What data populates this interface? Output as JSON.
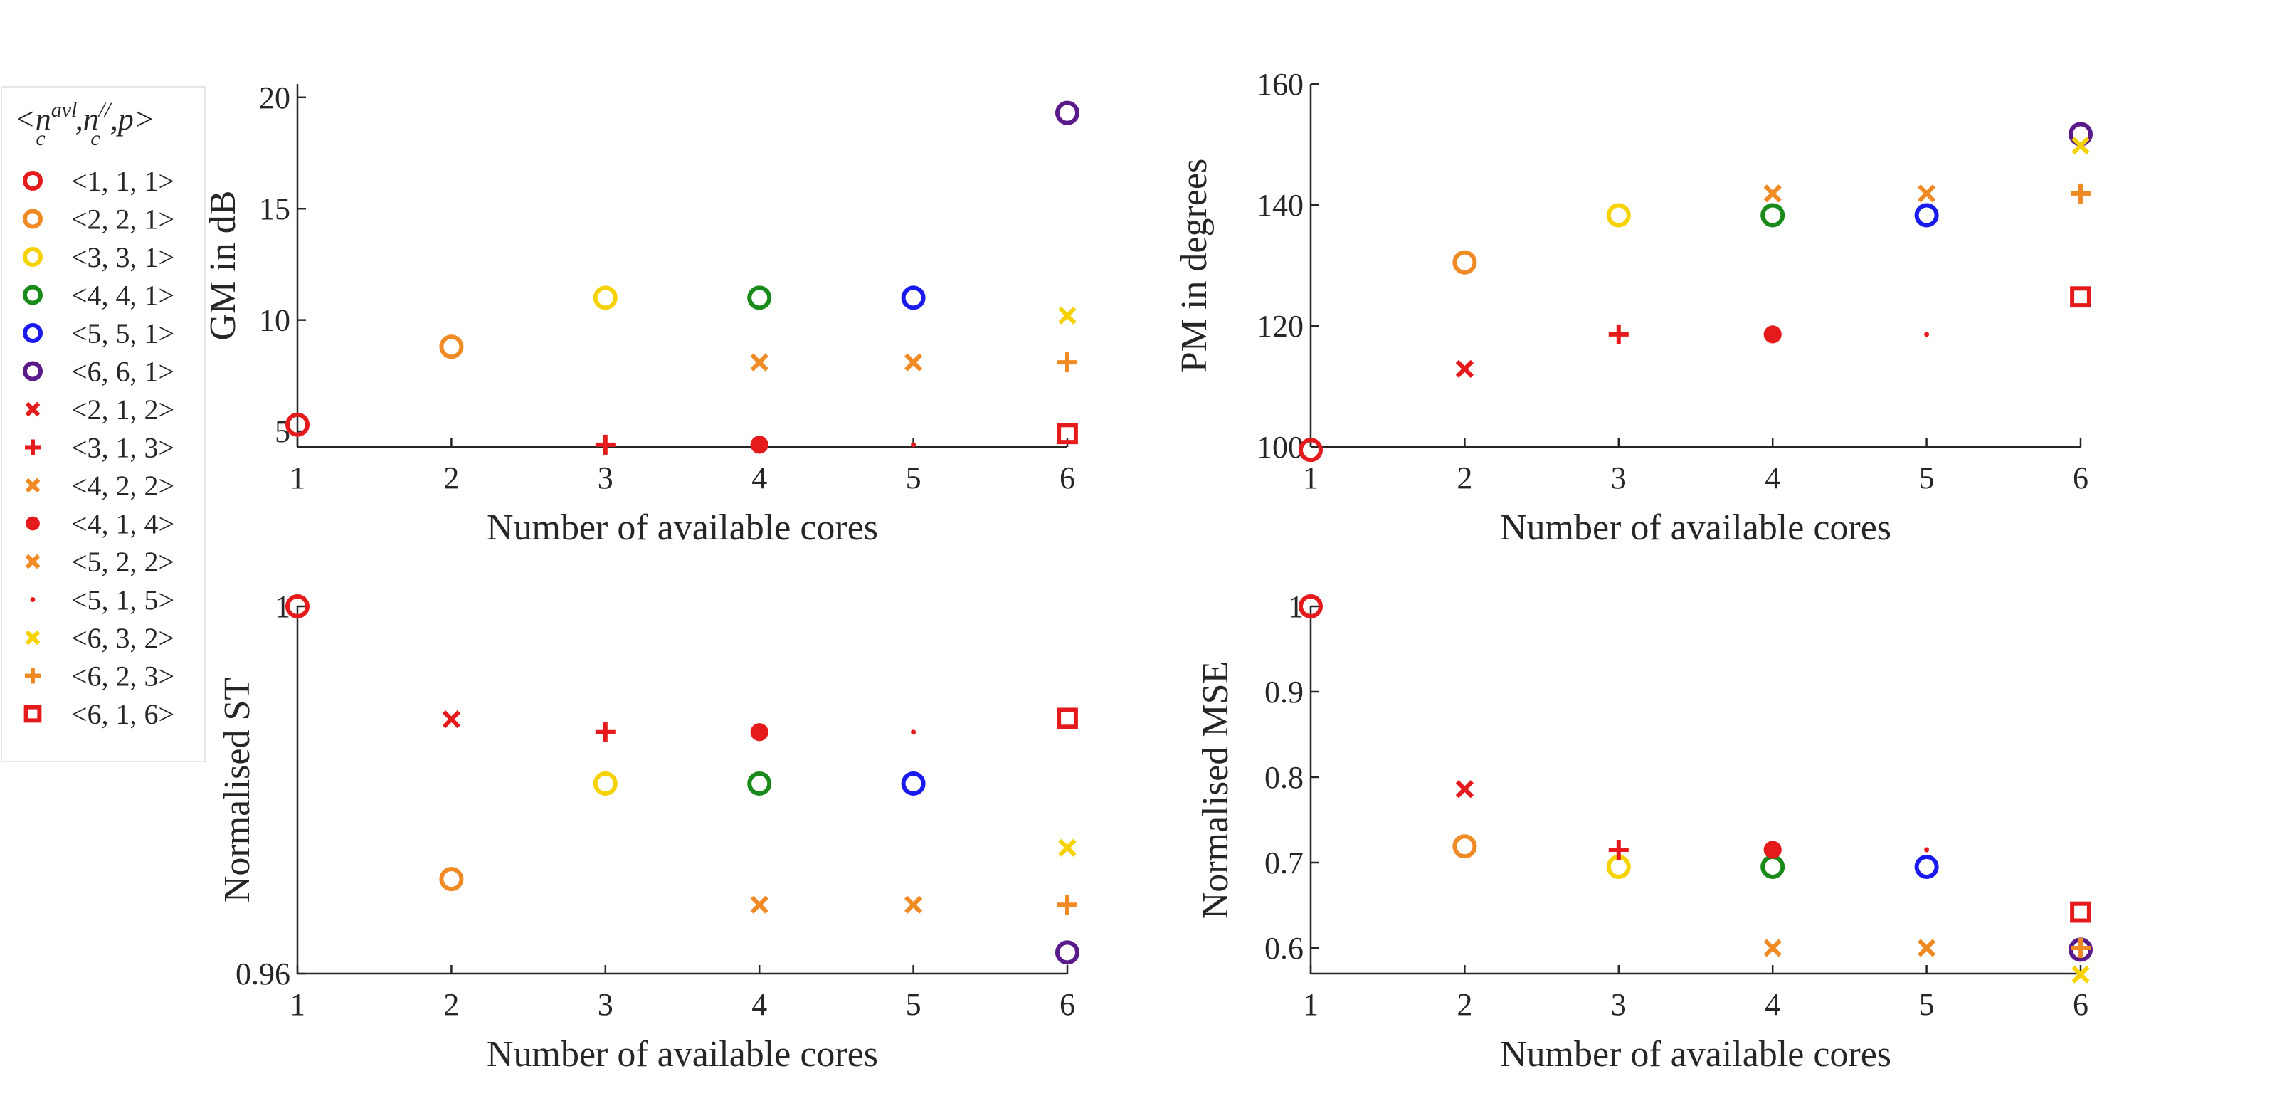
{
  "legend": {
    "title_main": "<n",
    "title_parts": [
      {
        "base": "n",
        "sup": "avl",
        "sub": "c"
      },
      {
        "base": "n",
        "sup": "//",
        "sub": "c"
      }
    ],
    "title_p": ",p>",
    "entries": [
      {
        "label": "<1, 1, 1>",
        "marker": "circle",
        "color": "#e41a1c"
      },
      {
        "label": "<2, 2, 1>",
        "marker": "circle",
        "color": "#f08a24"
      },
      {
        "label": "<3, 3, 1>",
        "marker": "circle",
        "color": "#f5d200"
      },
      {
        "label": "<4, 4, 1>",
        "marker": "circle",
        "color": "#1a8a1a"
      },
      {
        "label": "<5, 5, 1>",
        "marker": "circle",
        "color": "#1a1aee"
      },
      {
        "label": "<6, 6, 1>",
        "marker": "circle",
        "color": "#5a1a8a"
      },
      {
        "label": "<2, 1, 2>",
        "marker": "x",
        "color": "#e41a1c"
      },
      {
        "label": "<3, 1, 3>",
        "marker": "plus",
        "color": "#e41a1c"
      },
      {
        "label": "<4, 2, 2>",
        "marker": "x",
        "color": "#f08a24"
      },
      {
        "label": "<4, 1, 4>",
        "marker": "dot",
        "color": "#e41a1c"
      },
      {
        "label": "<5, 2, 2>",
        "marker": "x",
        "color": "#f08a24"
      },
      {
        "label": "<5, 1, 5>",
        "marker": "point",
        "color": "#e41a1c"
      },
      {
        "label": "<6, 3, 2>",
        "marker": "x",
        "color": "#f5d200"
      },
      {
        "label": "<6, 2, 3>",
        "marker": "plus",
        "color": "#f08a24"
      },
      {
        "label": "<6, 1, 6>",
        "marker": "square",
        "color": "#e41a1c"
      }
    ]
  },
  "chart_data": [
    {
      "type": "scatter",
      "xlabel": "Number of available cores",
      "ylabel": "GM in dB",
      "xlim": [
        1,
        6
      ],
      "ylim": [
        4.3,
        20.6
      ],
      "xticks": [
        "1",
        "2",
        "3",
        "4",
        "5",
        "6"
      ],
      "yticks": [
        {
          "v": 5,
          "t": "5"
        },
        {
          "v": 10,
          "t": "10"
        },
        {
          "v": 15,
          "t": "15"
        },
        {
          "v": 20,
          "t": "20"
        }
      ],
      "series": [
        {
          "name": "<1, 1, 1>",
          "x": 1,
          "y": 5.3
        },
        {
          "name": "<2, 2, 1>",
          "x": 2,
          "y": 8.8
        },
        {
          "name": "<3, 3, 1>",
          "x": 3,
          "y": 11.0
        },
        {
          "name": "<4, 4, 1>",
          "x": 4,
          "y": 11.0
        },
        {
          "name": "<5, 5, 1>",
          "x": 5,
          "y": 11.0
        },
        {
          "name": "<6, 6, 1>",
          "x": 6,
          "y": 19.3
        },
        {
          "name": "<3, 1, 3>",
          "x": 3,
          "y": 4.4
        },
        {
          "name": "<4, 1, 4>",
          "x": 4,
          "y": 4.4
        },
        {
          "name": "<4, 2, 2>",
          "x": 4,
          "y": 8.1
        },
        {
          "name": "<5, 1, 5>",
          "x": 5,
          "y": 4.4
        },
        {
          "name": "<5, 2, 2>",
          "x": 5,
          "y": 8.1
        },
        {
          "name": "<6, 3, 2>",
          "x": 6,
          "y": 10.2
        },
        {
          "name": "<6, 2, 3>",
          "x": 6,
          "y": 8.1
        },
        {
          "name": "<6, 1, 6>",
          "x": 6,
          "y": 4.9
        }
      ]
    },
    {
      "type": "scatter",
      "xlabel": "Number of available cores",
      "ylabel": "PM in degrees",
      "xlim": [
        1,
        6
      ],
      "ylim": [
        100,
        160
      ],
      "xticks": [
        "1",
        "2",
        "3",
        "4",
        "5",
        "6"
      ],
      "yticks": [
        {
          "v": 100,
          "t": "100"
        },
        {
          "v": 120,
          "t": "120"
        },
        {
          "v": 140,
          "t": "140"
        },
        {
          "v": 160,
          "t": "160"
        }
      ],
      "series": [
        {
          "name": "<1, 1, 1>",
          "x": 1,
          "y": 99.5
        },
        {
          "name": "<2, 2, 1>",
          "x": 2,
          "y": 130.5
        },
        {
          "name": "<3, 3, 1>",
          "x": 3,
          "y": 138.3
        },
        {
          "name": "<4, 4, 1>",
          "x": 4,
          "y": 138.3
        },
        {
          "name": "<5, 5, 1>",
          "x": 5,
          "y": 138.3
        },
        {
          "name": "<6, 6, 1>",
          "x": 6,
          "y": 151.7
        },
        {
          "name": "<2, 1, 2>",
          "x": 2,
          "y": 112.9
        },
        {
          "name": "<3, 1, 3>",
          "x": 3,
          "y": 118.6
        },
        {
          "name": "<4, 2, 2>",
          "x": 4,
          "y": 141.9
        },
        {
          "name": "<4, 1, 4>",
          "x": 4,
          "y": 118.6
        },
        {
          "name": "<5, 2, 2>",
          "x": 5,
          "y": 141.9
        },
        {
          "name": "<5, 1, 5>",
          "x": 5,
          "y": 118.6
        },
        {
          "name": "<6, 3, 2>",
          "x": 6,
          "y": 149.8
        },
        {
          "name": "<6, 2, 3>",
          "x": 6,
          "y": 141.9
        },
        {
          "name": "<6, 1, 6>",
          "x": 6,
          "y": 124.8
        }
      ]
    },
    {
      "type": "scatter",
      "xlabel": "Number of available cores",
      "ylabel": "Normalised ST",
      "xlim": [
        1,
        6
      ],
      "ylim": [
        0.96,
        1.0
      ],
      "xticks": [
        "1",
        "2",
        "3",
        "4",
        "5",
        "6"
      ],
      "yticks": [
        {
          "v": 0.96,
          "t": "0.96"
        },
        {
          "v": 1.0,
          "t": "1"
        }
      ],
      "series": [
        {
          "name": "<1, 1, 1>",
          "x": 1,
          "y": 1.0
        },
        {
          "name": "<2, 2, 1>",
          "x": 2,
          "y": 0.9703
        },
        {
          "name": "<3, 3, 1>",
          "x": 3,
          "y": 0.9807
        },
        {
          "name": "<4, 4, 1>",
          "x": 4,
          "y": 0.9807
        },
        {
          "name": "<5, 5, 1>",
          "x": 5,
          "y": 0.9807
        },
        {
          "name": "<6, 6, 1>",
          "x": 6,
          "y": 0.9623
        },
        {
          "name": "<2, 1, 2>",
          "x": 2,
          "y": 0.9877
        },
        {
          "name": "<3, 1, 3>",
          "x": 3,
          "y": 0.9863
        },
        {
          "name": "<4, 2, 2>",
          "x": 4,
          "y": 0.9675
        },
        {
          "name": "<4, 1, 4>",
          "x": 4,
          "y": 0.9863
        },
        {
          "name": "<5, 2, 2>",
          "x": 5,
          "y": 0.9675
        },
        {
          "name": "<5, 1, 5>",
          "x": 5,
          "y": 0.9863
        },
        {
          "name": "<6, 3, 2>",
          "x": 6,
          "y": 0.9737
        },
        {
          "name": "<6, 2, 3>",
          "x": 6,
          "y": 0.9675
        },
        {
          "name": "<6, 1, 6>",
          "x": 6,
          "y": 0.9878
        }
      ]
    },
    {
      "type": "scatter",
      "xlabel": "Number of available cores",
      "ylabel": "Normalised MSE",
      "xlim": [
        1,
        6
      ],
      "ylim": [
        0.57,
        1.0
      ],
      "xticks": [
        "1",
        "2",
        "3",
        "4",
        "5",
        "6"
      ],
      "yticks": [
        {
          "v": 0.6,
          "t": "0.6"
        },
        {
          "v": 0.7,
          "t": "0.7"
        },
        {
          "v": 0.8,
          "t": "0.8"
        },
        {
          "v": 0.9,
          "t": "0.9"
        },
        {
          "v": 1.0,
          "t": "1"
        }
      ],
      "series": [
        {
          "name": "<1, 1, 1>",
          "x": 1,
          "y": 1.0
        },
        {
          "name": "<2, 2, 1>",
          "x": 2,
          "y": 0.719
        },
        {
          "name": "<3, 3, 1>",
          "x": 3,
          "y": 0.695
        },
        {
          "name": "<4, 4, 1>",
          "x": 4,
          "y": 0.695
        },
        {
          "name": "<5, 5, 1>",
          "x": 5,
          "y": 0.695
        },
        {
          "name": "<6, 6, 1>",
          "x": 6,
          "y": 0.598
        },
        {
          "name": "<2, 1, 2>",
          "x": 2,
          "y": 0.786
        },
        {
          "name": "<3, 1, 3>",
          "x": 3,
          "y": 0.715
        },
        {
          "name": "<4, 2, 2>",
          "x": 4,
          "y": 0.6
        },
        {
          "name": "<4, 1, 4>",
          "x": 4,
          "y": 0.715
        },
        {
          "name": "<5, 2, 2>",
          "x": 5,
          "y": 0.6
        },
        {
          "name": "<5, 1, 5>",
          "x": 5,
          "y": 0.715
        },
        {
          "name": "<6, 3, 2>",
          "x": 6,
          "y": 0.569
        },
        {
          "name": "<6, 2, 3>",
          "x": 6,
          "y": 0.6
        },
        {
          "name": "<6, 1, 6>",
          "x": 6,
          "y": 0.642
        }
      ]
    }
  ]
}
